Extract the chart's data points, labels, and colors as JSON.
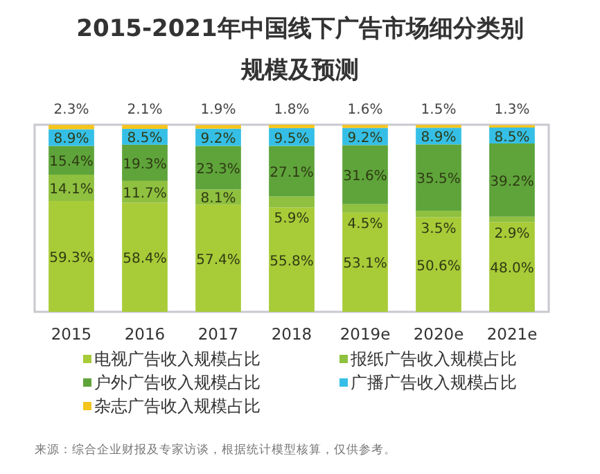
{
  "chart_data": {
    "type": "bar",
    "title": "2015-2021年中国线下广告市场细分类别",
    "subtitle": "规模及预测",
    "categories": [
      "2015",
      "2016",
      "2017",
      "2018",
      "2019e",
      "2020e",
      "2021e"
    ],
    "stacked": true,
    "legend": "bottom",
    "series": [
      {
        "name": "电视广告收入规模占比",
        "color": "#a8cb38",
        "values": [
          59.3,
          58.4,
          57.4,
          55.8,
          53.1,
          50.6,
          48.0
        ],
        "value_labels": [
          "59.3%",
          "58.4%",
          "57.4%",
          "55.8%",
          "53.1%",
          "50.6%",
          "48.0%"
        ]
      },
      {
        "name": "报纸广告收入规模占比",
        "color": "#8fc03f",
        "values": [
          14.1,
          11.7,
          8.1,
          5.9,
          4.5,
          3.5,
          2.9
        ],
        "value_labels": [
          "14.1%",
          "11.7%",
          "8.1%",
          "5.9%",
          "4.5%",
          "3.5%",
          "2.9%"
        ]
      },
      {
        "name": "户外广告收入规模占比",
        "color": "#5ea43a",
        "values": [
          15.4,
          19.3,
          23.3,
          27.1,
          31.6,
          35.5,
          39.2
        ],
        "value_labels": [
          "15.4%",
          "19.3%",
          "23.3%",
          "27.1%",
          "31.6%",
          "35.5%",
          "39.2%"
        ]
      },
      {
        "name": "广播广告收入规模占比",
        "color": "#35bfe6",
        "values": [
          8.9,
          8.5,
          9.2,
          9.5,
          9.2,
          8.9,
          8.5
        ],
        "value_labels": [
          "8.9%",
          "8.5%",
          "9.2%",
          "9.5%",
          "9.2%",
          "8.9%",
          "8.5%"
        ]
      },
      {
        "name": "杂志广告收入规模占比",
        "color": "#f4c51c",
        "values": [
          2.3,
          2.1,
          1.9,
          1.8,
          1.6,
          1.5,
          1.3
        ],
        "value_labels": [
          "2.3%",
          "2.1%",
          "1.9%",
          "1.8%",
          "1.6%",
          "1.5%",
          "1.3%"
        ]
      }
    ],
    "annotations": [
      "来源：综合企业财报及专家访谈，根据统计模型核算，仅供参考。"
    ]
  }
}
